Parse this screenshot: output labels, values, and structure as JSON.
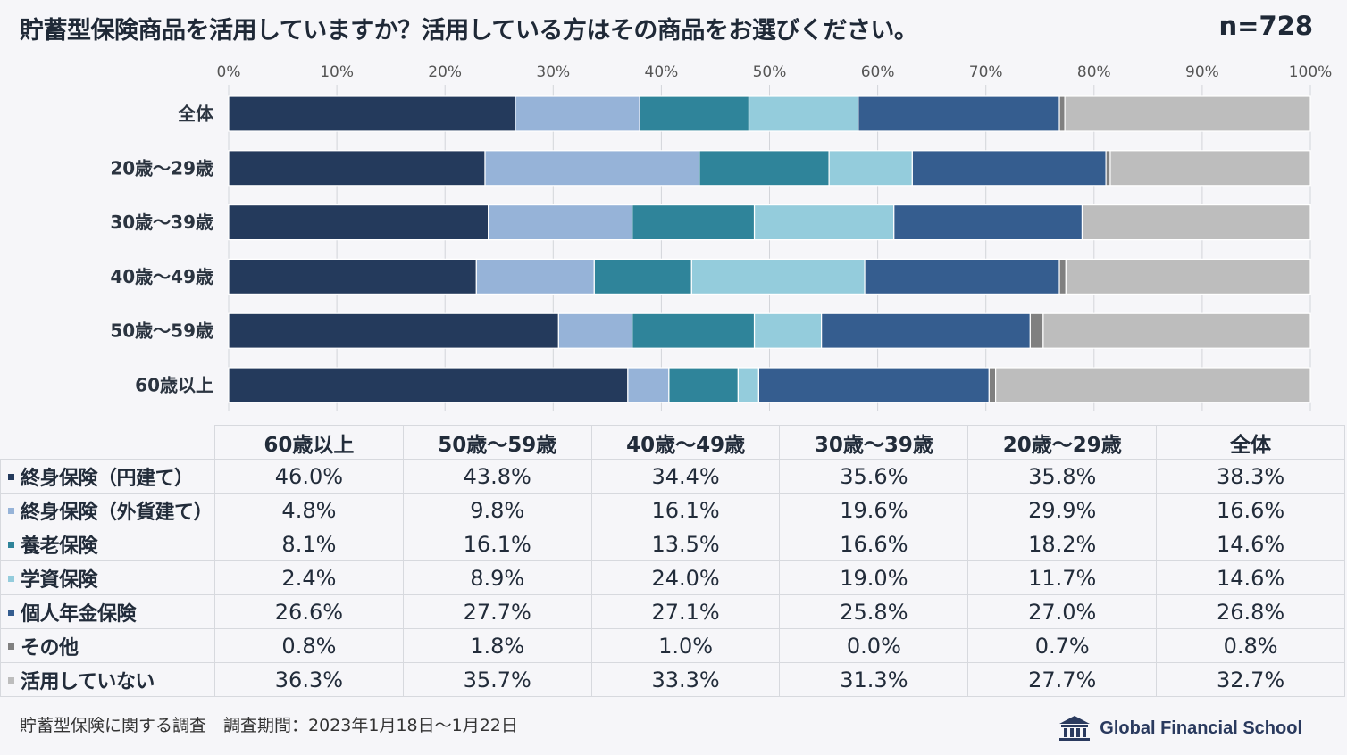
{
  "header": {
    "title": "貯蓄型保険商品を活用していますか？活用している方はその商品をお選びください。",
    "sample_size": "n=728"
  },
  "chart_data": {
    "type": "bar",
    "orientation": "horizontal",
    "stacked": true,
    "title": "貯蓄型保険商品を活用していますか？活用している方はその商品をお選びください。",
    "xlim": [
      0,
      100
    ],
    "x_ticks": [
      "0%",
      "10%",
      "20%",
      "30%",
      "40%",
      "50%",
      "60%",
      "70%",
      "80%",
      "90%",
      "100%"
    ],
    "grid": true,
    "categories": [
      "全体",
      "20歳～29歳",
      "30歳～39歳",
      "40歳～49歳",
      "50歳～59歳",
      "60歳以上"
    ],
    "series": [
      {
        "name": "終身保険（円建て）",
        "color": "#243a5c",
        "values": [
          26.5,
          23.7,
          24.0,
          22.9,
          30.5,
          36.9
        ]
      },
      {
        "name": "終身保険（外貨建て）",
        "color": "#96b3d8",
        "values": [
          11.5,
          19.8,
          13.3,
          10.9,
          6.8,
          3.8
        ]
      },
      {
        "name": "養老保険",
        "color": "#2f849a",
        "values": [
          10.1,
          12.0,
          11.3,
          9.0,
          11.3,
          6.4
        ]
      },
      {
        "name": "学資保険",
        "color": "#94ccdc",
        "values": [
          10.1,
          7.7,
          12.9,
          16.0,
          6.2,
          1.9
        ]
      },
      {
        "name": "個人年金保険",
        "color": "#355d8f",
        "values": [
          18.6,
          17.9,
          17.4,
          18.0,
          19.3,
          21.3
        ]
      },
      {
        "name": "その他",
        "color": "#808080",
        "values": [
          0.5,
          0.4,
          0.0,
          0.6,
          1.2,
          0.6
        ]
      },
      {
        "name": "活用していない",
        "color": "#bdbdbd",
        "values": [
          22.7,
          18.5,
          21.1,
          22.6,
          24.7,
          29.1
        ]
      }
    ]
  },
  "table": {
    "columns": [
      "60歳以上",
      "50歳～59歳",
      "40歳～49歳",
      "30歳～39歳",
      "20歳～29歳",
      "全体"
    ],
    "rows": [
      {
        "label": "終身保険（円建て）",
        "color": "#243a5c",
        "values": [
          "46.0%",
          "43.8%",
          "34.4%",
          "35.6%",
          "35.8%",
          "38.3%"
        ]
      },
      {
        "label": "終身保険（外貨建て）",
        "color": "#96b3d8",
        "values": [
          "4.8%",
          "9.8%",
          "16.1%",
          "19.6%",
          "29.9%",
          "16.6%"
        ]
      },
      {
        "label": "養老保険",
        "color": "#2f849a",
        "values": [
          "8.1%",
          "16.1%",
          "13.5%",
          "16.6%",
          "18.2%",
          "14.6%"
        ]
      },
      {
        "label": "学資保険",
        "color": "#94ccdc",
        "values": [
          "2.4%",
          "8.9%",
          "24.0%",
          "19.0%",
          "11.7%",
          "14.6%"
        ]
      },
      {
        "label": "個人年金保険",
        "color": "#355d8f",
        "values": [
          "26.6%",
          "27.7%",
          "27.1%",
          "25.8%",
          "27.0%",
          "26.8%"
        ]
      },
      {
        "label": "その他",
        "color": "#808080",
        "values": [
          "0.8%",
          "1.8%",
          "1.0%",
          "0.0%",
          "0.7%",
          "0.8%"
        ]
      },
      {
        "label": "活用していない",
        "color": "#bdbdbd",
        "values": [
          "36.3%",
          "35.7%",
          "33.3%",
          "31.3%",
          "27.7%",
          "32.7%"
        ]
      }
    ]
  },
  "footer": {
    "note": "貯蓄型保険に関する調査　調査期間：2023年1月18日～1月22日",
    "brand": "Global Financial School"
  }
}
